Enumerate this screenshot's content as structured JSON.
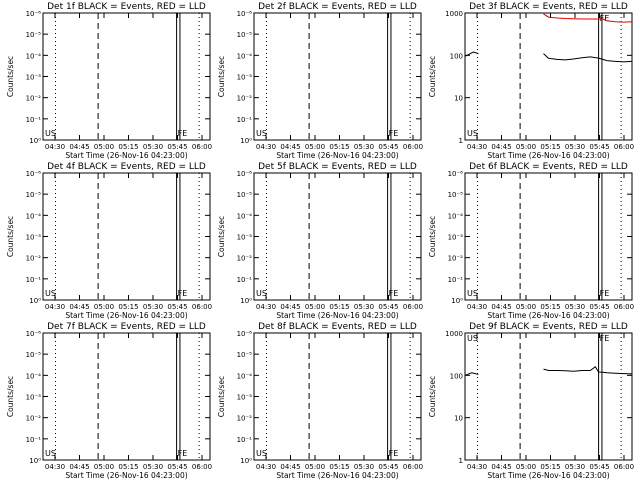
{
  "colors": {
    "events": "#000000",
    "lld": "#e00000",
    "background": "#ffffff"
  },
  "x_ticks": [
    "04:30",
    "04:45",
    "05:00",
    "05:15",
    "05:30",
    "05:45",
    "06:00"
  ],
  "xlabel": "Start Time (26-Nov-16 04:23:00)",
  "ylabel": "Counts/sec",
  "markers": {
    "start": "US",
    "end": "FE"
  },
  "chart_data": [
    {
      "type": "line",
      "title": "Det 1f BLACK = Events, RED = LLD",
      "scale": "exp",
      "y_ticks": [
        "10⁰",
        "10⁻¹",
        "10⁻²",
        "10⁻³",
        "10⁻⁴",
        "10⁻⁵",
        "10⁻⁶"
      ],
      "series": []
    },
    {
      "type": "line",
      "title": "Det 2f BLACK = Events, RED = LLD",
      "scale": "exp",
      "y_ticks": [
        "10⁰",
        "10⁻¹",
        "10⁻²",
        "10⁻³",
        "10⁻⁴",
        "10⁻⁵",
        "10⁻⁶"
      ],
      "series": []
    },
    {
      "type": "line",
      "title": "Det 3f BLACK = Events, RED = LLD",
      "scale": "log",
      "y_ticks": [
        "1",
        "10",
        "100",
        "1000"
      ],
      "ylim": [
        1,
        1000
      ],
      "series": [
        {
          "color": "lld",
          "x": [
            0.47,
            0.5,
            0.55,
            0.6,
            0.65,
            0.7,
            0.75,
            0.8,
            0.825,
            0.85,
            0.9,
            0.95,
            1.0
          ],
          "values": [
            950,
            800,
            760,
            740,
            730,
            720,
            720,
            720,
            720,
            650,
            620,
            610,
            620
          ]
        },
        {
          "color": "events",
          "x": [
            0.0,
            0.05,
            0.08
          ],
          "values": [
            95,
            120,
            110
          ]
        },
        {
          "color": "events",
          "x": [
            0.47,
            0.5,
            0.55,
            0.6,
            0.65,
            0.7,
            0.75,
            0.8,
            0.825,
            0.85,
            0.9,
            0.95,
            1.0
          ],
          "values": [
            110,
            85,
            80,
            78,
            82,
            88,
            92,
            86,
            80,
            75,
            72,
            70,
            72
          ]
        }
      ]
    },
    {
      "type": "line",
      "title": "Det 4f BLACK = Events, RED = LLD",
      "scale": "exp",
      "y_ticks": [
        "10⁰",
        "10⁻¹",
        "10⁻²",
        "10⁻³",
        "10⁻⁴",
        "10⁻⁵",
        "10⁻⁶"
      ],
      "series": []
    },
    {
      "type": "line",
      "title": "Det 5f BLACK = Events, RED = LLD",
      "scale": "exp",
      "y_ticks": [
        "10⁰",
        "10⁻¹",
        "10⁻²",
        "10⁻³",
        "10⁻⁴",
        "10⁻⁵",
        "10⁻⁶"
      ],
      "series": []
    },
    {
      "type": "line",
      "title": "Det 6f BLACK = Events, RED = LLD",
      "scale": "exp",
      "y_ticks": [
        "10⁰",
        "10⁻¹",
        "10⁻²",
        "10⁻³",
        "10⁻⁴",
        "10⁻⁵",
        "10⁻⁶"
      ],
      "series": []
    },
    {
      "type": "line",
      "title": "Det 7f BLACK = Events, RED = LLD",
      "scale": "exp",
      "y_ticks": [
        "10⁰",
        "10⁻¹",
        "10⁻²",
        "10⁻³",
        "10⁻⁴",
        "10⁻⁵",
        "10⁻⁶"
      ],
      "series": []
    },
    {
      "type": "line",
      "title": "Det 8f BLACK = Events, RED = LLD",
      "scale": "exp",
      "y_ticks": [
        "10⁰",
        "10⁻¹",
        "10⁻²",
        "10⁻³",
        "10⁻⁴",
        "10⁻⁵",
        "10⁻⁶"
      ],
      "series": []
    },
    {
      "type": "line",
      "title": "Det 9f BLACK = Events, RED = LLD",
      "scale": "log",
      "y_ticks": [
        "1",
        "10",
        "100",
        "1000"
      ],
      "ylim": [
        1,
        1000
      ],
      "series": [
        {
          "color": "events",
          "x": [
            0.0,
            0.04,
            0.08
          ],
          "values": [
            100,
            115,
            105
          ]
        },
        {
          "color": "events",
          "x": [
            0.47,
            0.5,
            0.55,
            0.6,
            0.65,
            0.7,
            0.75,
            0.78,
            0.8,
            0.825,
            0.85,
            0.9,
            0.95,
            1.0
          ],
          "values": [
            140,
            130,
            130,
            128,
            125,
            130,
            130,
            160,
            120,
            118,
            115,
            112,
            110,
            108
          ]
        }
      ]
    }
  ]
}
